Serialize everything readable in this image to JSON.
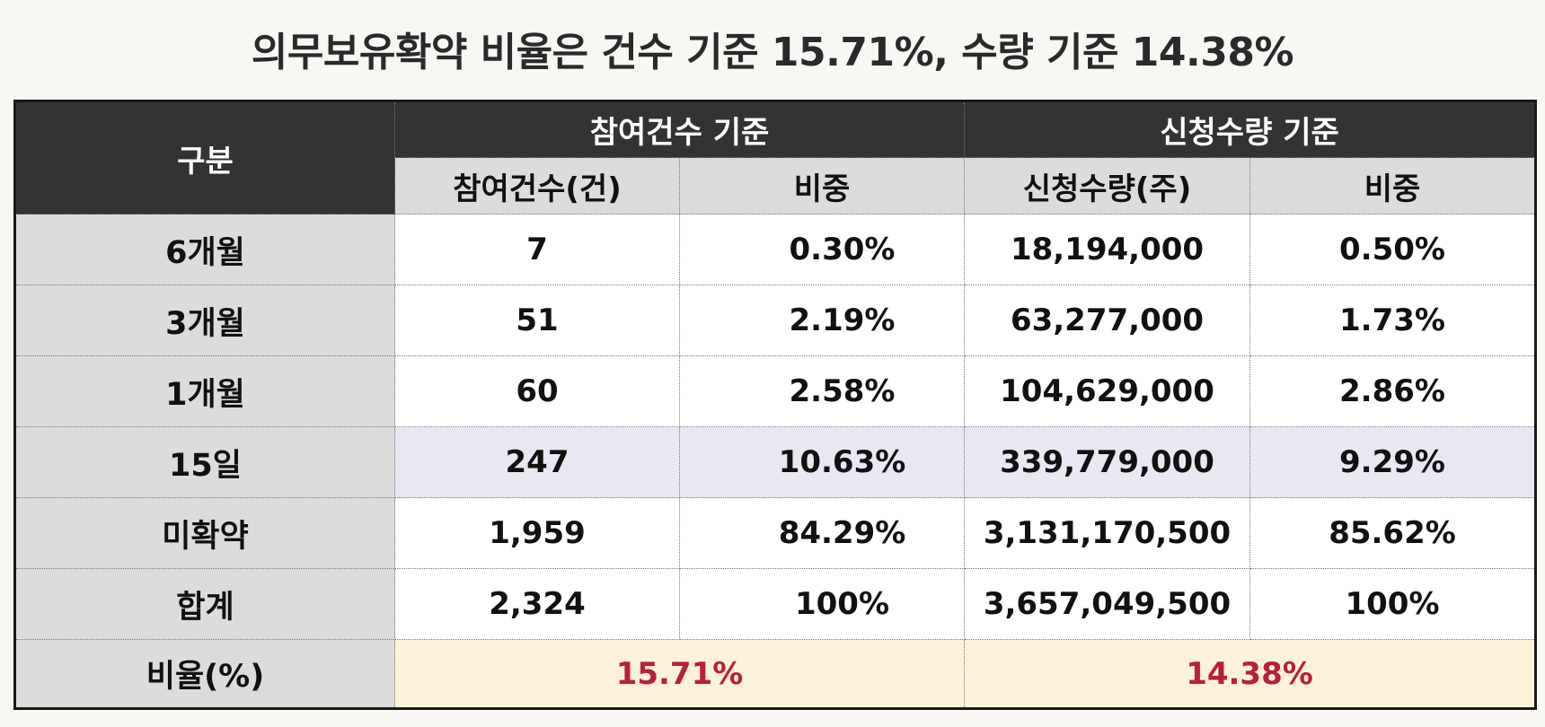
{
  "title": "의무보유확약 비율은 건수 기준 15.71%, 수량 기준 14.38%",
  "table": {
    "corner_label": "구분",
    "group_count_label": "참여건수 기준",
    "group_qty_label": "신청수량 기준",
    "col_count": "참여건수(건)",
    "col_count_share": "비중",
    "col_qty": "신청수량(주)",
    "col_qty_share": "비중",
    "rows": [
      {
        "label": "6개월",
        "count": "7",
        "count_share": "0.30%",
        "qty": "18,194,000",
        "qty_share": "0.50%",
        "highlight": false
      },
      {
        "label": "3개월",
        "count": "51",
        "count_share": "2.19%",
        "qty": "63,277,000",
        "qty_share": "1.73%",
        "highlight": false
      },
      {
        "label": "1개월",
        "count": "60",
        "count_share": "2.58%",
        "qty": "104,629,000",
        "qty_share": "2.86%",
        "highlight": false
      },
      {
        "label": "15일",
        "count": "247",
        "count_share": "10.63%",
        "qty": "339,779,000",
        "qty_share": "9.29%",
        "highlight": true
      },
      {
        "label": "미확약",
        "count": "1,959",
        "count_share": "84.29%",
        "qty": "3,131,170,500",
        "qty_share": "85.62%",
        "highlight": false
      },
      {
        "label": "합계",
        "count": "2,324",
        "count_share": "100%",
        "qty": "3,657,049,500",
        "qty_share": "100%",
        "highlight": false
      }
    ],
    "ratio_label": "비율(%)",
    "ratio_count": "15.71%",
    "ratio_qty": "14.38%"
  },
  "colors": {
    "header_dark": "#333333",
    "header_light": "#dcdcdc",
    "highlight_row": "#e9e7f1",
    "ratio_bg": "#fbf2d8",
    "ratio_text": "#b81f3c"
  }
}
